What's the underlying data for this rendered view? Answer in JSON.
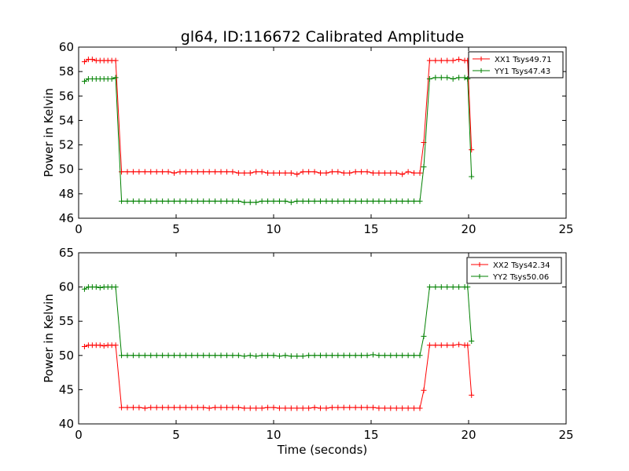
{
  "chart_data": [
    {
      "type": "line",
      "title": "gl64, ID:116672 Calibrated Amplitude",
      "xlabel": "",
      "ylabel": "Power in Kelvin",
      "xlim": [
        0,
        25
      ],
      "ylim": [
        46,
        60
      ],
      "x_ticks": [
        "0",
        "5",
        "10",
        "15",
        "20",
        "25"
      ],
      "y_ticks": [
        "46",
        "48",
        "50",
        "52",
        "54",
        "56",
        "58",
        "60"
      ],
      "legend_placement": "top-right",
      "series": [
        {
          "name": "XX1 Tsys49.71",
          "color": "#ff0000",
          "x": [
            0.3,
            0.5,
            0.7,
            0.9,
            1.1,
            1.3,
            1.5,
            1.7,
            1.9,
            2.2,
            2.5,
            2.8,
            3.1,
            3.4,
            3.7,
            4.0,
            4.3,
            4.6,
            4.9,
            5.2,
            5.5,
            5.8,
            6.1,
            6.4,
            6.7,
            7.0,
            7.3,
            7.6,
            7.9,
            8.2,
            8.5,
            8.8,
            9.1,
            9.4,
            9.7,
            10.0,
            10.3,
            10.6,
            10.9,
            11.2,
            11.5,
            11.8,
            12.1,
            12.4,
            12.7,
            13.0,
            13.3,
            13.6,
            13.9,
            14.2,
            14.5,
            14.8,
            15.1,
            15.4,
            15.7,
            16.0,
            16.3,
            16.6,
            16.9,
            17.2,
            17.5,
            17.7,
            18.0,
            18.3,
            18.6,
            18.9,
            19.2,
            19.5,
            19.8,
            19.95,
            20.15
          ],
          "values": [
            58.8,
            59.0,
            59.0,
            58.9,
            58.9,
            58.9,
            58.9,
            58.9,
            58.9,
            49.8,
            49.8,
            49.8,
            49.8,
            49.8,
            49.8,
            49.8,
            49.8,
            49.8,
            49.7,
            49.8,
            49.8,
            49.8,
            49.8,
            49.8,
            49.8,
            49.8,
            49.8,
            49.8,
            49.8,
            49.7,
            49.7,
            49.7,
            49.8,
            49.8,
            49.7,
            49.7,
            49.7,
            49.7,
            49.7,
            49.6,
            49.8,
            49.8,
            49.8,
            49.7,
            49.7,
            49.8,
            49.8,
            49.7,
            49.7,
            49.8,
            49.8,
            49.8,
            49.7,
            49.7,
            49.7,
            49.7,
            49.7,
            49.6,
            49.8,
            49.7,
            49.7,
            52.2,
            58.9,
            58.9,
            58.9,
            58.9,
            58.9,
            59.0,
            58.9,
            58.9,
            51.6
          ]
        },
        {
          "name": "YY1 Tsys47.43",
          "color": "#008000",
          "x": [
            0.3,
            0.5,
            0.7,
            0.9,
            1.1,
            1.3,
            1.5,
            1.7,
            1.9,
            2.2,
            2.5,
            2.8,
            3.1,
            3.4,
            3.7,
            4.0,
            4.3,
            4.6,
            4.9,
            5.2,
            5.5,
            5.8,
            6.1,
            6.4,
            6.7,
            7.0,
            7.3,
            7.6,
            7.9,
            8.2,
            8.5,
            8.8,
            9.1,
            9.4,
            9.7,
            10.0,
            10.3,
            10.6,
            10.9,
            11.2,
            11.5,
            11.8,
            12.1,
            12.4,
            12.7,
            13.0,
            13.3,
            13.6,
            13.9,
            14.2,
            14.5,
            14.8,
            15.1,
            15.4,
            15.7,
            16.0,
            16.3,
            16.6,
            16.9,
            17.2,
            17.5,
            17.7,
            18.0,
            18.3,
            18.6,
            18.9,
            19.2,
            19.5,
            19.8,
            19.95,
            20.15
          ],
          "values": [
            57.2,
            57.4,
            57.4,
            57.4,
            57.4,
            57.4,
            57.4,
            57.4,
            57.5,
            47.4,
            47.4,
            47.4,
            47.4,
            47.4,
            47.4,
            47.4,
            47.4,
            47.4,
            47.4,
            47.4,
            47.4,
            47.4,
            47.4,
            47.4,
            47.4,
            47.4,
            47.4,
            47.4,
            47.4,
            47.4,
            47.3,
            47.3,
            47.3,
            47.4,
            47.4,
            47.4,
            47.4,
            47.4,
            47.3,
            47.4,
            47.4,
            47.4,
            47.4,
            47.4,
            47.4,
            47.4,
            47.4,
            47.4,
            47.4,
            47.4,
            47.4,
            47.4,
            47.4,
            47.4,
            47.4,
            47.4,
            47.4,
            47.4,
            47.4,
            47.4,
            47.4,
            50.2,
            57.4,
            57.5,
            57.5,
            57.5,
            57.4,
            57.5,
            57.5,
            57.4,
            49.4
          ]
        }
      ]
    },
    {
      "type": "line",
      "title": "",
      "xlabel": "Time (seconds)",
      "ylabel": "Power in Kelvin",
      "xlim": [
        0,
        25
      ],
      "ylim": [
        40,
        65
      ],
      "x_ticks": [
        "0",
        "5",
        "10",
        "15",
        "20",
        "25"
      ],
      "y_ticks": [
        "40",
        "45",
        "50",
        "55",
        "60",
        "65"
      ],
      "legend_placement": "top-right",
      "series": [
        {
          "name": "XX2 Tsys42.34",
          "color": "#ff0000",
          "x": [
            0.3,
            0.5,
            0.7,
            0.9,
            1.1,
            1.3,
            1.5,
            1.7,
            1.9,
            2.2,
            2.5,
            2.8,
            3.1,
            3.4,
            3.7,
            4.0,
            4.3,
            4.6,
            4.9,
            5.2,
            5.5,
            5.8,
            6.1,
            6.4,
            6.7,
            7.0,
            7.3,
            7.6,
            7.9,
            8.2,
            8.5,
            8.8,
            9.1,
            9.4,
            9.7,
            10.0,
            10.3,
            10.6,
            10.9,
            11.2,
            11.5,
            11.8,
            12.1,
            12.4,
            12.7,
            13.0,
            13.3,
            13.6,
            13.9,
            14.2,
            14.5,
            14.8,
            15.1,
            15.4,
            15.7,
            16.0,
            16.3,
            16.6,
            16.9,
            17.2,
            17.5,
            17.7,
            18.0,
            18.3,
            18.6,
            18.9,
            19.2,
            19.5,
            19.8,
            19.95,
            20.15
          ],
          "values": [
            51.3,
            51.5,
            51.5,
            51.5,
            51.5,
            51.4,
            51.5,
            51.5,
            51.5,
            42.4,
            42.4,
            42.4,
            42.4,
            42.3,
            42.4,
            42.4,
            42.4,
            42.4,
            42.4,
            42.4,
            42.4,
            42.4,
            42.4,
            42.4,
            42.3,
            42.4,
            42.4,
            42.4,
            42.4,
            42.4,
            42.3,
            42.3,
            42.3,
            42.3,
            42.4,
            42.4,
            42.3,
            42.3,
            42.3,
            42.3,
            42.3,
            42.3,
            42.4,
            42.3,
            42.3,
            42.4,
            42.4,
            42.4,
            42.4,
            42.4,
            42.4,
            42.4,
            42.4,
            42.3,
            42.3,
            42.3,
            42.3,
            42.3,
            42.3,
            42.3,
            42.3,
            44.9,
            51.5,
            51.5,
            51.5,
            51.5,
            51.5,
            51.6,
            51.5,
            51.5,
            44.2
          ]
        },
        {
          "name": "YY2 Tsys50.06",
          "color": "#008000",
          "x": [
            0.3,
            0.5,
            0.7,
            0.9,
            1.1,
            1.3,
            1.5,
            1.7,
            1.9,
            2.2,
            2.5,
            2.8,
            3.1,
            3.4,
            3.7,
            4.0,
            4.3,
            4.6,
            4.9,
            5.2,
            5.5,
            5.8,
            6.1,
            6.4,
            6.7,
            7.0,
            7.3,
            7.6,
            7.9,
            8.2,
            8.5,
            8.8,
            9.1,
            9.4,
            9.7,
            10.0,
            10.3,
            10.6,
            10.9,
            11.2,
            11.5,
            11.8,
            12.1,
            12.4,
            12.7,
            13.0,
            13.3,
            13.6,
            13.9,
            14.2,
            14.5,
            14.8,
            15.1,
            15.4,
            15.7,
            16.0,
            16.3,
            16.6,
            16.9,
            17.2,
            17.5,
            17.7,
            18.0,
            18.3,
            18.6,
            18.9,
            19.2,
            19.5,
            19.8,
            19.95,
            20.15
          ],
          "values": [
            59.7,
            60.0,
            60.0,
            60.0,
            59.9,
            60.0,
            60.0,
            60.0,
            60.0,
            50.0,
            50.0,
            50.0,
            50.0,
            50.0,
            50.0,
            50.0,
            50.0,
            50.0,
            50.0,
            50.0,
            50.0,
            50.0,
            50.0,
            50.0,
            50.0,
            50.0,
            50.0,
            50.0,
            50.0,
            50.0,
            49.9,
            50.0,
            49.9,
            50.0,
            50.0,
            50.0,
            49.9,
            50.0,
            49.9,
            49.9,
            49.9,
            50.0,
            50.0,
            50.0,
            50.0,
            50.0,
            50.0,
            50.0,
            50.0,
            50.0,
            50.0,
            50.0,
            50.1,
            50.0,
            50.0,
            50.0,
            50.0,
            50.0,
            50.0,
            50.0,
            50.0,
            52.8,
            60.0,
            60.0,
            60.0,
            60.0,
            60.0,
            60.0,
            60.0,
            60.0,
            52.1
          ]
        }
      ]
    }
  ]
}
